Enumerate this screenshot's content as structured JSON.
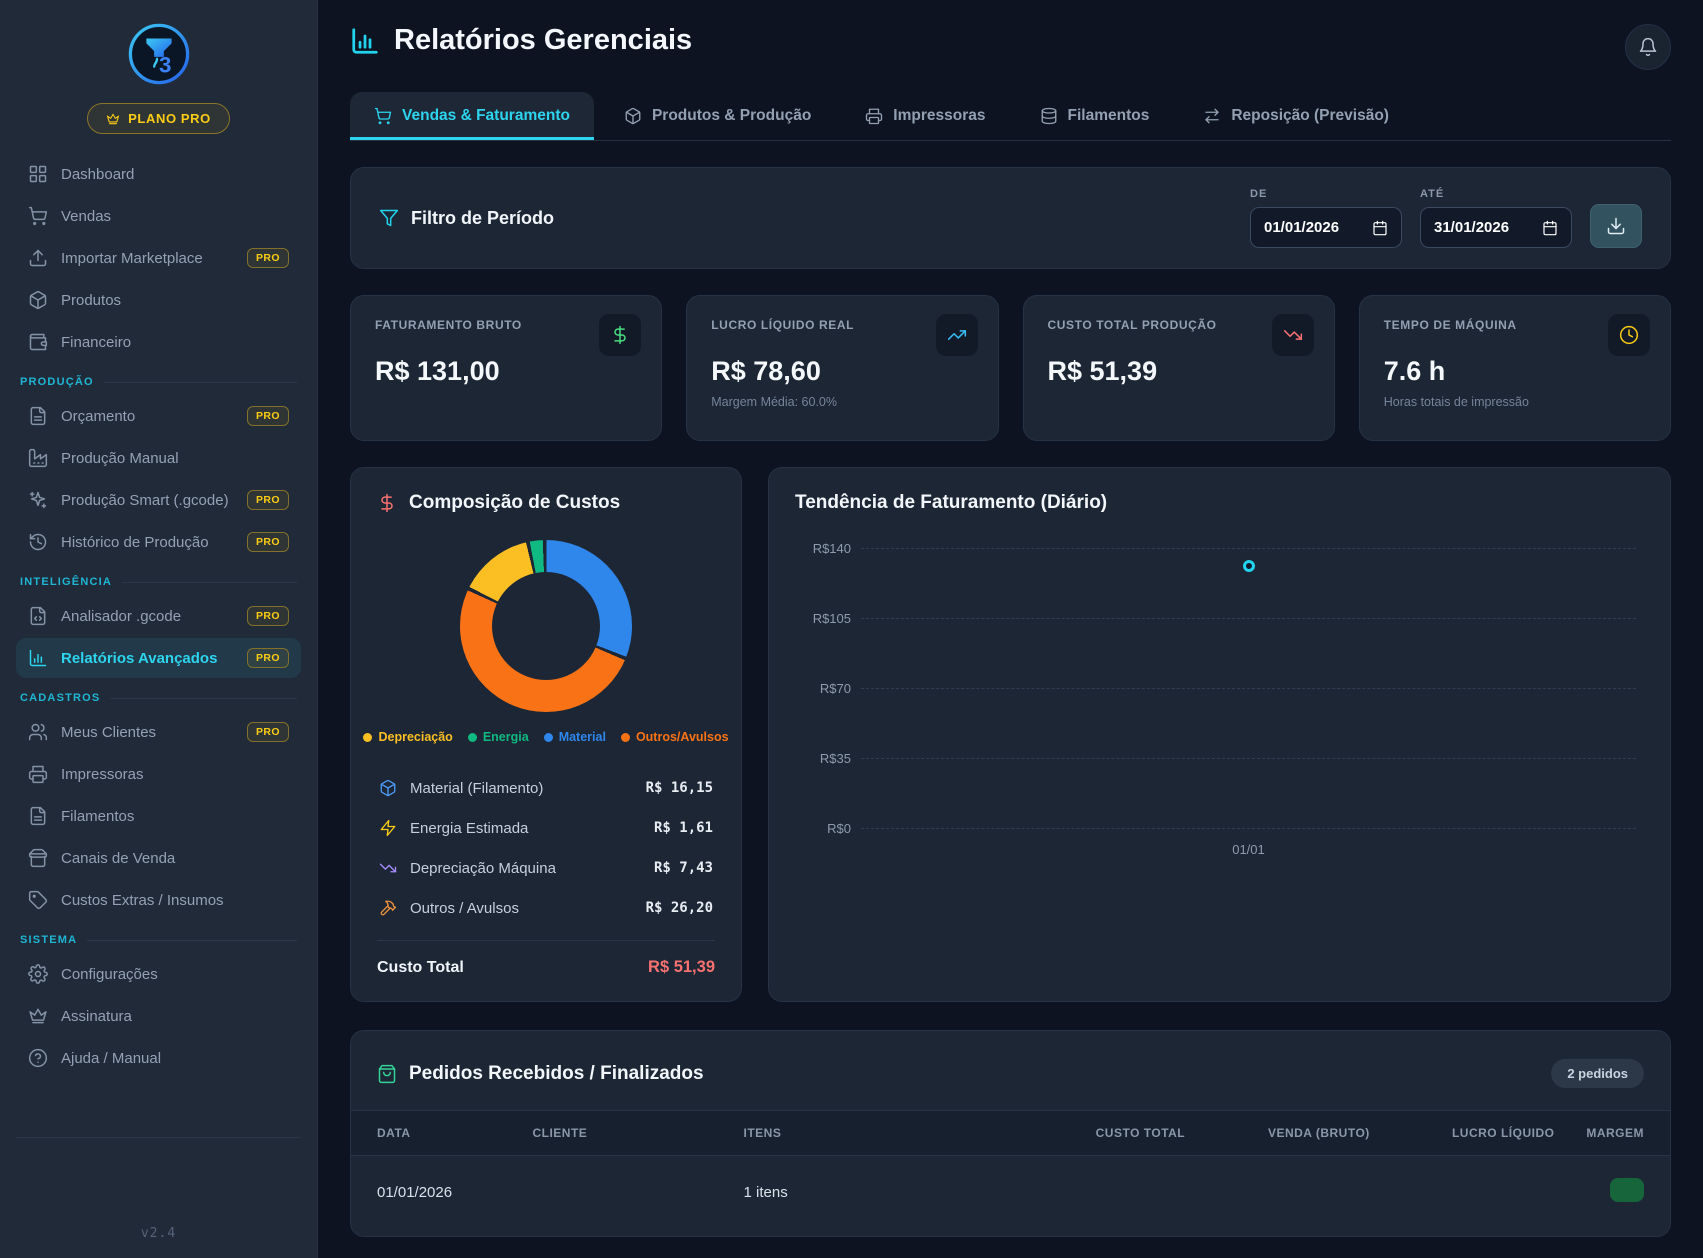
{
  "theme": {
    "accent_cyan": "#2dd4ee",
    "pro_yellow": "#facc15",
    "success_green": "#34d399",
    "danger_red": "#f87171",
    "info_blue": "#38bdf8"
  },
  "sidebar": {
    "plan_badge": "PLANO PRO",
    "pro_label": "PRO",
    "version": "v2.4",
    "sections": {
      "producao": "PRODUÇÃO",
      "inteligencia": "INTELIGÊNCIA",
      "cadastros": "CADASTROS",
      "sistema": "SISTEMA"
    },
    "items": [
      {
        "label": "Dashboard"
      },
      {
        "label": "Vendas"
      },
      {
        "label": "Importar Marketplace",
        "pro": true
      },
      {
        "label": "Produtos"
      },
      {
        "label": "Financeiro"
      },
      {
        "label": "Orçamento",
        "pro": true
      },
      {
        "label": "Produção Manual"
      },
      {
        "label": "Produção Smart (.gcode)",
        "pro": true
      },
      {
        "label": "Histórico de Produção",
        "pro": true
      },
      {
        "label": "Analisador .gcode",
        "pro": true
      },
      {
        "label": "Relatórios Avançados",
        "pro": true,
        "active": true
      },
      {
        "label": "Meus Clientes",
        "pro": true
      },
      {
        "label": "Impressoras"
      },
      {
        "label": "Filamentos"
      },
      {
        "label": "Canais de Venda"
      },
      {
        "label": "Custos Extras / Insumos"
      },
      {
        "label": "Configurações"
      },
      {
        "label": "Assinatura"
      },
      {
        "label": "Ajuda / Manual"
      }
    ]
  },
  "header": {
    "title": "Relatórios Gerenciais"
  },
  "tabs": [
    {
      "label": "Vendas & Faturamento",
      "active": true
    },
    {
      "label": "Produtos & Produção"
    },
    {
      "label": "Impressoras"
    },
    {
      "label": "Filamentos"
    },
    {
      "label": "Reposição (Previsão)"
    }
  ],
  "filter": {
    "title": "Filtro de Período",
    "from_label": "DE",
    "from_value": "01/01/2026",
    "to_label": "ATÉ",
    "to_value": "31/01/2026"
  },
  "kpis": [
    {
      "label": "FATURAMENTO BRUTO",
      "value": "R$ 131,00",
      "subtext": ""
    },
    {
      "label": "LUCRO LÍQUIDO REAL",
      "value": "R$ 78,60",
      "subtext": "Margem Média: 60.0%"
    },
    {
      "label": "CUSTO TOTAL PRODUÇÃO",
      "value": "R$ 51,39",
      "subtext": ""
    },
    {
      "label": "TEMPO DE MÁQUINA",
      "value": "7.6 h",
      "subtext": "Horas totais de impressão"
    }
  ],
  "cost_card": {
    "rows": [
      {
        "label": "Material (Filamento)",
        "value": "R$ 16,15"
      },
      {
        "label": "Energia Estimada",
        "value": "R$ 1,61"
      },
      {
        "label": "Depreciação Máquina",
        "value": "R$ 7,43"
      },
      {
        "label": "Outros / Avulsos",
        "value": "R$ 26,20"
      }
    ],
    "total_label": "Custo Total",
    "total_value": "R$ 51,39"
  },
  "orders": {
    "title": "Pedidos Recebidos / Finalizados",
    "count_badge": "2 pedidos",
    "columns": [
      "DATA",
      "CLIENTE",
      "ITENS",
      "CUSTO TOTAL",
      "VENDA (BRUTO)",
      "LUCRO LÍQUIDO",
      "MARGEM"
    ],
    "rows": [
      {
        "data": "01/01/2026",
        "cliente": "",
        "itens": "1 itens",
        "custo_total": "",
        "venda_bruto": "",
        "lucro_liquido": "",
        "margem": ""
      }
    ]
  },
  "chart_data": [
    {
      "type": "pie",
      "variant": "donut",
      "title": "Composição de Custos",
      "labels": [
        "Depreciação",
        "Energia",
        "Material",
        "Outros/Avulsos"
      ],
      "values": [
        7.43,
        1.61,
        16.15,
        26.2
      ],
      "unit": "R$",
      "colors": [
        "#fbbf24",
        "#10b981",
        "#2f86eb",
        "#f97316"
      ],
      "legend_position": "bottom",
      "rotation_deg": -63,
      "hole_color": "#1c2634"
    },
    {
      "type": "line",
      "title": "Tendência de Faturamento (Diário)",
      "x": [
        "01/01"
      ],
      "series": [
        {
          "name": "Faturamento",
          "values": [
            131
          ]
        }
      ],
      "ylim": [
        0,
        140
      ],
      "yticks_top_to_bottom": [
        "R$140",
        "R$105",
        "R$70",
        "R$35",
        "R$0"
      ],
      "grid": "dashed-horizontal",
      "point_color": "#22d3ee",
      "point_style": "hollow"
    }
  ]
}
